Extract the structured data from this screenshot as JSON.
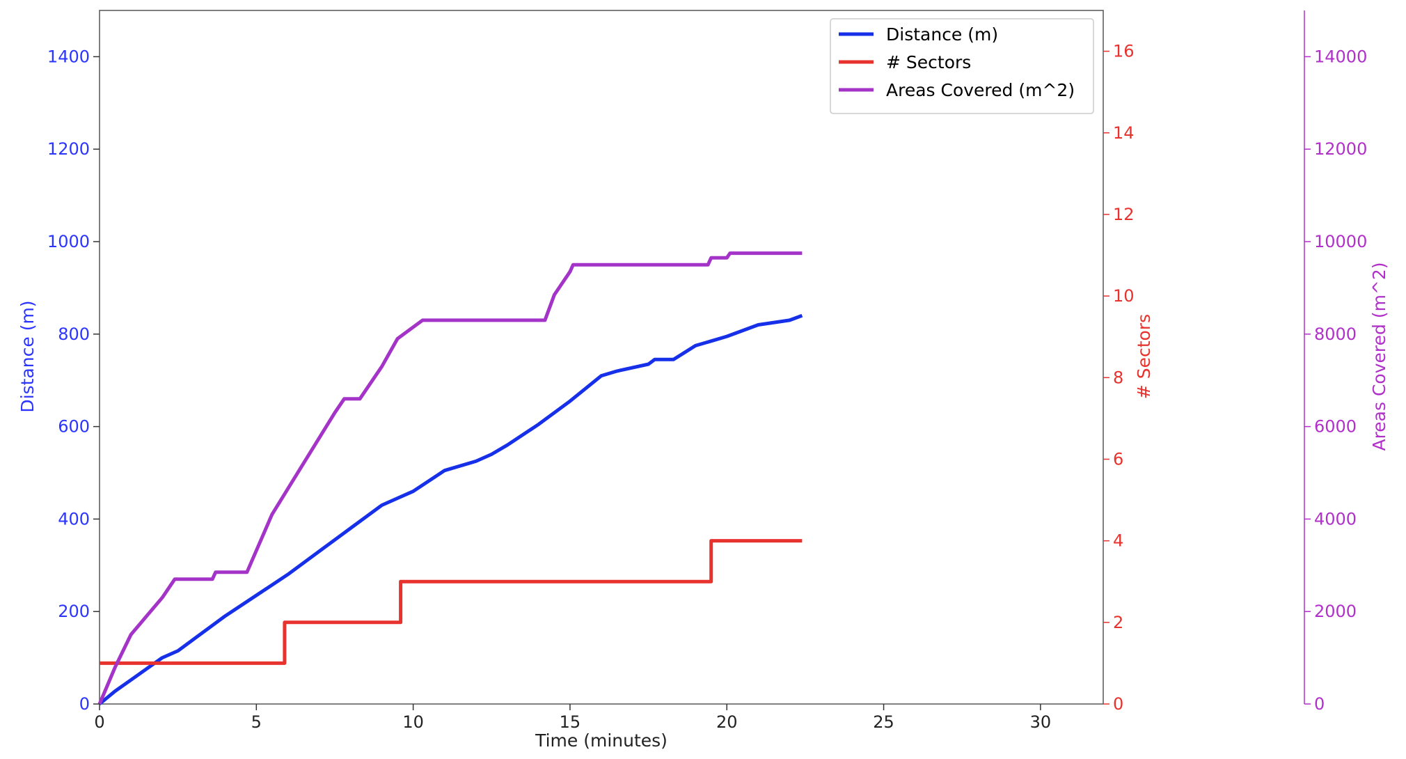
{
  "chart_data": {
    "type": "line",
    "xlabel": "Time (minutes)",
    "xlim": [
      0,
      32
    ],
    "xticks": [
      0,
      5,
      10,
      15,
      20,
      25,
      30
    ],
    "axes": {
      "left": {
        "label": "Distance (m)",
        "color": "#2b35ff",
        "lim": [
          0,
          1500
        ],
        "ticks": [
          0,
          200,
          400,
          600,
          800,
          1000,
          1200,
          1400
        ]
      },
      "right": {
        "label": "# Sectors",
        "color": "#e8322d",
        "lim": [
          0,
          17
        ],
        "ticks": [
          0,
          2,
          4,
          6,
          8,
          10,
          12,
          14,
          16
        ]
      },
      "far_right": {
        "label": "Areas Covered (m^2)",
        "color": "#b030c9",
        "lim": [
          0,
          15000
        ],
        "ticks": [
          0,
          2000,
          4000,
          6000,
          8000,
          10000,
          12000,
          14000
        ]
      }
    },
    "grid": false,
    "legend_position": "top-right",
    "series": [
      {
        "name": "Distance (m)",
        "axis": "left",
        "color": "#1530e8",
        "step": false,
        "x": [
          0,
          0.5,
          1,
          2,
          2.5,
          3,
          4,
          5,
          6,
          7,
          8,
          9,
          9.5,
          10,
          11,
          12,
          12.5,
          13,
          14,
          15,
          16,
          16.5,
          17.5,
          17.7,
          18.3,
          19,
          19.5,
          20,
          21,
          22,
          22.4
        ],
        "values": [
          0,
          28,
          52,
          100,
          115,
          140,
          190,
          235,
          280,
          330,
          380,
          430,
          445,
          460,
          505,
          525,
          540,
          560,
          605,
          655,
          710,
          720,
          735,
          745,
          745,
          775,
          785,
          795,
          820,
          830,
          840
        ]
      },
      {
        "name": "# Sectors",
        "axis": "right",
        "color": "#e8322d",
        "step": true,
        "x": [
          0,
          5.9,
          9.6,
          19.5,
          22.4
        ],
        "values": [
          1,
          2,
          3,
          4,
          4
        ]
      },
      {
        "name": "Areas Covered (m^2)",
        "axis": "far_right",
        "color": "#a433c8",
        "step": false,
        "x": [
          0,
          0.5,
          1,
          1.5,
          2,
          2.4,
          3.6,
          3.7,
          4.7,
          5.5,
          6.5,
          7.5,
          7.8,
          8.3,
          9,
          9.5,
          10.3,
          14.2,
          14.5,
          15,
          15.1,
          19.4,
          19.5,
          20,
          20.1,
          22.4
        ],
        "values": [
          0,
          800,
          1500,
          1900,
          2300,
          2700,
          2700,
          2850,
          2850,
          4100,
          5200,
          6300,
          6600,
          6600,
          7300,
          7900,
          8300,
          8300,
          8850,
          9350,
          9500,
          9500,
          9650,
          9650,
          9750,
          9750
        ]
      }
    ]
  }
}
